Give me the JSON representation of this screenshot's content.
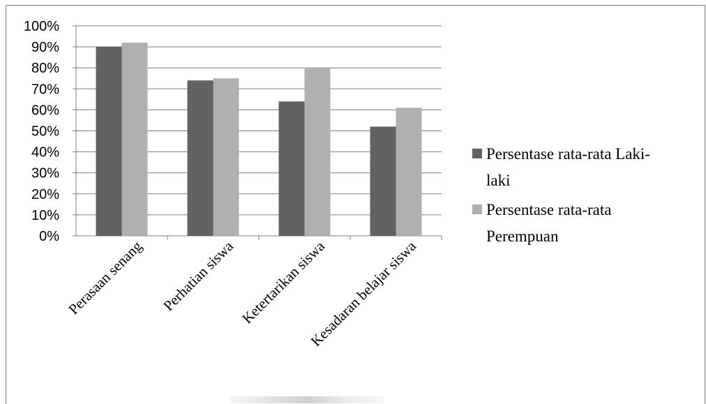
{
  "colors": {
    "series_1": "#626262",
    "series_2": "#b0b0b0",
    "grid": "#7f7f7f",
    "frame": "#7a7a7a"
  },
  "chart_data": {
    "type": "bar",
    "categories": [
      "Perasaan senang",
      "Perhatian siswa",
      "Ketertarikan siswa",
      "Kesadaran belajar siswa"
    ],
    "series": [
      {
        "name": "Persentase rata-rata Laki-laki",
        "values": [
          90,
          74,
          64,
          52
        ]
      },
      {
        "name": "Persentase rata-rata Perempuan",
        "values": [
          92,
          75,
          80,
          61
        ]
      }
    ],
    "ylim": [
      0,
      100
    ],
    "y_ticks": [
      "0%",
      "10%",
      "20%",
      "30%",
      "40%",
      "50%",
      "60%",
      "70%",
      "80%",
      "90%",
      "100%"
    ],
    "y_tick_values": [
      0,
      10,
      20,
      30,
      40,
      50,
      60,
      70,
      80,
      90,
      100
    ],
    "legend_position": "right",
    "legend_lines": [
      [
        "Persentase rata-rata Laki-",
        "laki"
      ],
      [
        "Persentase rata-rata",
        "Perempuan"
      ]
    ],
    "grid": true
  }
}
